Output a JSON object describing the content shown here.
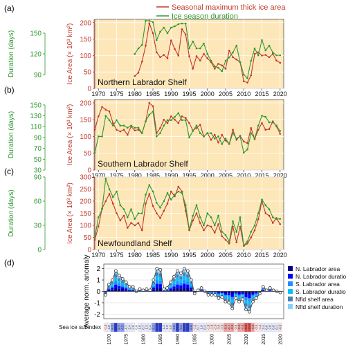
{
  "legend": {
    "area_label": "Seasonal maximum thick ice area",
    "duration_label": "Ice season duration",
    "area_color": "#c0392b",
    "duration_color": "#2e9a2e"
  },
  "colors": {
    "panel_bg": "#fde6b8",
    "grid": "#ffffff",
    "area": "#c0392b",
    "duration": "#2e9a2e",
    "n_area": "#00008b",
    "n_duration": "#0000ff",
    "s_area": "#1e90ff",
    "s_duration": "#00bfff",
    "nfld_area": "#4682b4",
    "nfld_duration": "#87cefa"
  },
  "chart_data": [
    {
      "panel_label": "(a)",
      "type": "line",
      "title": "Northern Labrador Shelf",
      "xlim": [
        1969,
        2021
      ],
      "left_axis": {
        "label": "Duration (days)",
        "ticks": [
          90,
          120,
          150
        ]
      },
      "right_axis": {
        "label": "Ice Area (× 10³ km²)",
        "ticks": [
          0,
          50,
          100,
          150,
          200
        ]
      },
      "ylim_area": [
        0,
        210
      ],
      "ylim_duration": [
        70,
        170
      ],
      "series": [
        {
          "name": "Seasonal maximum thick ice area",
          "x": [
            1980,
            1981,
            1982,
            1983,
            1984,
            1985,
            1986,
            1987,
            1988,
            1989,
            1990,
            1991,
            1992,
            1993,
            1994,
            1995,
            1996,
            1997,
            1998,
            1999,
            2000,
            2001,
            2002,
            2003,
            2004,
            2005,
            2006,
            2007,
            2008,
            2009,
            2010,
            2011,
            2012,
            2013,
            2014,
            2015,
            2016,
            2017,
            2018,
            2019,
            2020
          ],
          "values": [
            38,
            48,
            82,
            130,
            198,
            168,
            110,
            95,
            102,
            92,
            146,
            120,
            100,
            180,
            164,
            98,
            60,
            98,
            85,
            105,
            92,
            80,
            60,
            75,
            70,
            60,
            115,
            95,
            88,
            80,
            22,
            18,
            40,
            105,
            110,
            100,
            102,
            95,
            105,
            85,
            78
          ]
        },
        {
          "name": "Ice season duration",
          "x": [
            1980,
            1981,
            1982,
            1983,
            1984,
            1985,
            1986,
            1987,
            1988,
            1989,
            1990,
            1991,
            1992,
            1993,
            1994,
            1995,
            1996,
            1997,
            1998,
            1999,
            2000,
            2001,
            2002,
            2003,
            2004,
            2005,
            2006,
            2007,
            2008,
            2009,
            2010,
            2011,
            2012,
            2013,
            2014,
            2015,
            2016,
            2017,
            2018,
            2019,
            2020
          ],
          "values": [
            120,
            128,
            133,
            168,
            168,
            166,
            140,
            152,
            158,
            150,
            158,
            160,
            163,
            164,
            164,
            128,
            138,
            128,
            128,
            135,
            120,
            110,
            102,
            100,
            95,
            110,
            115,
            122,
            132,
            108,
            90,
            85,
            110,
            128,
            118,
            140,
            125,
            132,
            122,
            118,
            118
          ]
        }
      ]
    },
    {
      "panel_label": "(b)",
      "type": "line",
      "title": "Southern Labrador Shelf",
      "xlim": [
        1969,
        2021
      ],
      "left_axis": {
        "label": "Duration (days)",
        "ticks": [
          30,
          50,
          70,
          90,
          110,
          130,
          150
        ]
      },
      "right_axis": {
        "label": "Ice Area (× 10³ km²)",
        "ticks": [
          0,
          50,
          100,
          150,
          200
        ]
      },
      "ylim_area": [
        0,
        210
      ],
      "ylim_duration": [
        30,
        160
      ],
      "series": [
        {
          "name": "Seasonal maximum thick ice area",
          "x": [
            1969,
            1970,
            1971,
            1972,
            1973,
            1974,
            1975,
            1976,
            1977,
            1978,
            1979,
            1980,
            1981,
            1982,
            1983,
            1984,
            1985,
            1986,
            1987,
            1988,
            1989,
            1990,
            1991,
            1992,
            1993,
            1994,
            1995,
            1996,
            1997,
            1998,
            1999,
            2000,
            2001,
            2002,
            2003,
            2004,
            2005,
            2006,
            2007,
            2008,
            2009,
            2010,
            2011,
            2012,
            2013,
            2014,
            2015,
            2016,
            2017,
            2018,
            2019,
            2020
          ],
          "values": [
            120,
            160,
            188,
            180,
            175,
            140,
            120,
            115,
            120,
            105,
            130,
            118,
            120,
            110,
            145,
            200,
            190,
            110,
            125,
            150,
            140,
            160,
            150,
            140,
            160,
            155,
            140,
            118,
            125,
            135,
            100,
            110,
            90,
            105,
            82,
            105,
            88,
            78,
            120,
            90,
            102,
            85,
            80,
            125,
            92,
            120,
            140,
            120,
            122,
            145,
            130,
            108
          ]
        },
        {
          "name": "Ice season duration",
          "x": [
            1969,
            1970,
            1971,
            1972,
            1973,
            1974,
            1975,
            1976,
            1977,
            1978,
            1979,
            1980,
            1981,
            1982,
            1983,
            1984,
            1985,
            1986,
            1987,
            1988,
            1989,
            1990,
            1991,
            1992,
            1993,
            1994,
            1995,
            1996,
            1997,
            1998,
            1999,
            2000,
            2001,
            2002,
            2003,
            2004,
            2005,
            2006,
            2007,
            2008,
            2009,
            2010,
            2011,
            2012,
            2013,
            2014,
            2015,
            2016,
            2017,
            2018,
            2019,
            2020
          ],
          "values": [
            62,
            92,
            92,
            130,
            122,
            112,
            122,
            112,
            112,
            108,
            112,
            108,
            108,
            98,
            120,
            132,
            138,
            92,
            98,
            112,
            122,
            122,
            128,
            135,
            122,
            122,
            90,
            102,
            112,
            98,
            92,
            98,
            98,
            88,
            92,
            78,
            88,
            78,
            98,
            88,
            92,
            62,
            68,
            98,
            88,
            112,
            130,
            128,
            118,
            118,
            112,
            102
          ]
        }
      ]
    },
    {
      "panel_label": "(c)",
      "type": "line",
      "title": "Newfoundland Shelf",
      "xlim": [
        1969,
        2021
      ],
      "left_axis": {
        "label": "Duration (days)",
        "ticks": [
          0,
          30,
          60,
          90
        ]
      },
      "right_axis": {
        "label": "Ice Area (× 10³ km²)",
        "ticks": [
          0,
          50,
          100,
          150,
          200,
          250,
          300
        ]
      },
      "ylim_area": [
        0,
        300
      ],
      "ylim_duration": [
        0,
        90
      ],
      "series": [
        {
          "name": "Seasonal maximum thick ice area",
          "x": [
            1969,
            1970,
            1971,
            1972,
            1973,
            1974,
            1975,
            1976,
            1977,
            1978,
            1979,
            1980,
            1981,
            1982,
            1983,
            1984,
            1985,
            1986,
            1987,
            1988,
            1989,
            1990,
            1991,
            1992,
            1993,
            1994,
            1995,
            1996,
            1997,
            1998,
            1999,
            2000,
            2001,
            2002,
            2003,
            2004,
            2005,
            2006,
            2007,
            2008,
            2009,
            2010,
            2011,
            2012,
            2013,
            2014,
            2015,
            2016,
            2017,
            2018,
            2019,
            2020
          ],
          "values": [
            40,
            95,
            170,
            200,
            230,
            190,
            150,
            120,
            140,
            90,
            110,
            100,
            110,
            80,
            190,
            230,
            180,
            150,
            130,
            160,
            190,
            240,
            220,
            260,
            240,
            160,
            80,
            120,
            150,
            110,
            80,
            100,
            95,
            70,
            105,
            55,
            40,
            25,
            95,
            30,
            95,
            15,
            25,
            50,
            80,
            125,
            200,
            150,
            140,
            110,
            130,
            105
          ]
        },
        {
          "name": "Ice season duration",
          "x": [
            1969,
            1970,
            1971,
            1972,
            1973,
            1974,
            1975,
            1976,
            1977,
            1978,
            1979,
            1980,
            1981,
            1982,
            1983,
            1984,
            1985,
            1986,
            1987,
            1988,
            1989,
            1990,
            1991,
            1992,
            1993,
            1994,
            1995,
            1996,
            1997,
            1998,
            1999,
            2000,
            2001,
            2002,
            2003,
            2004,
            2005,
            2006,
            2007,
            2008,
            2009,
            2010,
            2011,
            2012,
            2013,
            2014,
            2015,
            2016,
            2017,
            2018,
            2019,
            2020
          ],
          "values": [
            15,
            40,
            50,
            88,
            75,
            65,
            72,
            55,
            50,
            40,
            50,
            38,
            45,
            45,
            68,
            80,
            72,
            58,
            52,
            60,
            70,
            62,
            68,
            72,
            70,
            55,
            25,
            42,
            55,
            40,
            30,
            45,
            40,
            30,
            42,
            22,
            18,
            10,
            35,
            22,
            40,
            5,
            10,
            22,
            30,
            45,
            62,
            55,
            50,
            40,
            38,
            38
          ]
        }
      ]
    },
    {
      "panel_label": "(d)",
      "type": "bar",
      "ylabel": "Average norm. anomaly",
      "ylim": [
        -2.4,
        2.4
      ],
      "yticks": [
        -2,
        -1,
        0,
        1,
        2
      ],
      "xlim": [
        1968.5,
        2021
      ],
      "legend": [
        "N. Labrador area",
        "N. Labrador duration",
        "S. Labrador area",
        "S. Labrador duration",
        "Nfld shelf area",
        "Nfld shelf duration"
      ],
      "subindex_label": "Sea ice subindex",
      "x": [
        1969,
        1970,
        1971,
        1972,
        1973,
        1974,
        1975,
        1976,
        1977,
        1978,
        1979,
        1980,
        1981,
        1982,
        1983,
        1984,
        1985,
        1986,
        1987,
        1988,
        1989,
        1990,
        1991,
        1992,
        1993,
        1994,
        1995,
        1996,
        1997,
        1998,
        1999,
        2000,
        2001,
        2002,
        2003,
        2004,
        2005,
        2006,
        2007,
        2008,
        2009,
        2010,
        2011,
        2012,
        2013,
        2014,
        2015,
        2016,
        2017,
        2018,
        2019,
        2020
      ],
      "total": [
        -0.3,
        0.6,
        1.0,
        1.8,
        1.4,
        1.1,
        0.8,
        0.4,
        0.4,
        0.0,
        0.2,
        0.1,
        0.2,
        0.1,
        1.0,
        2.0,
        1.9,
        0.2,
        0.3,
        0.8,
        1.3,
        1.8,
        1.6,
        2.0,
        1.8,
        1.0,
        -0.2,
        0.1,
        0.3,
        0.0,
        -0.3,
        -0.3,
        -0.3,
        -0.6,
        -0.5,
        -0.9,
        -1.0,
        -1.5,
        -0.6,
        -0.9,
        -0.7,
        -1.6,
        -1.8,
        -0.9,
        -0.6,
        -0.2,
        0.4,
        0.1,
        0.3,
        0.1,
        0.0,
        -0.1
      ],
      "subindex_values": [
        "-1.3",
        "4.8",
        "6.3",
        "10.6",
        "8.2",
        "6.5",
        "4.7",
        "2.4",
        "2.6",
        "0.0",
        "1.5",
        "0.7",
        "1.3",
        "0.4",
        "6.1",
        "11.8",
        "11.2",
        "1.3",
        "1.9",
        "4.9",
        "7.6",
        "10.6",
        "9.4",
        "12.1",
        "10.8",
        "6.0",
        "-1.2",
        "0.7",
        "1.9",
        "0.2",
        "-1.8",
        "-1.8",
        "-2.0",
        "-3.6",
        "-3.0",
        "-5.4",
        "-6.2",
        "-8.9",
        "-3.6",
        "-5.2",
        "-4.4",
        "-9.5",
        "-10.8",
        "-5.6",
        "-3.5",
        "-1.2",
        "2.4",
        "0.6",
        "2.0",
        "0.8",
        "0.1",
        "-0.8"
      ],
      "x_tick_labels": [
        "1970",
        "1975",
        "1980",
        "1985",
        "1990",
        "1995",
        "2000",
        "2005",
        "2010",
        "2015",
        "2020"
      ]
    }
  ]
}
